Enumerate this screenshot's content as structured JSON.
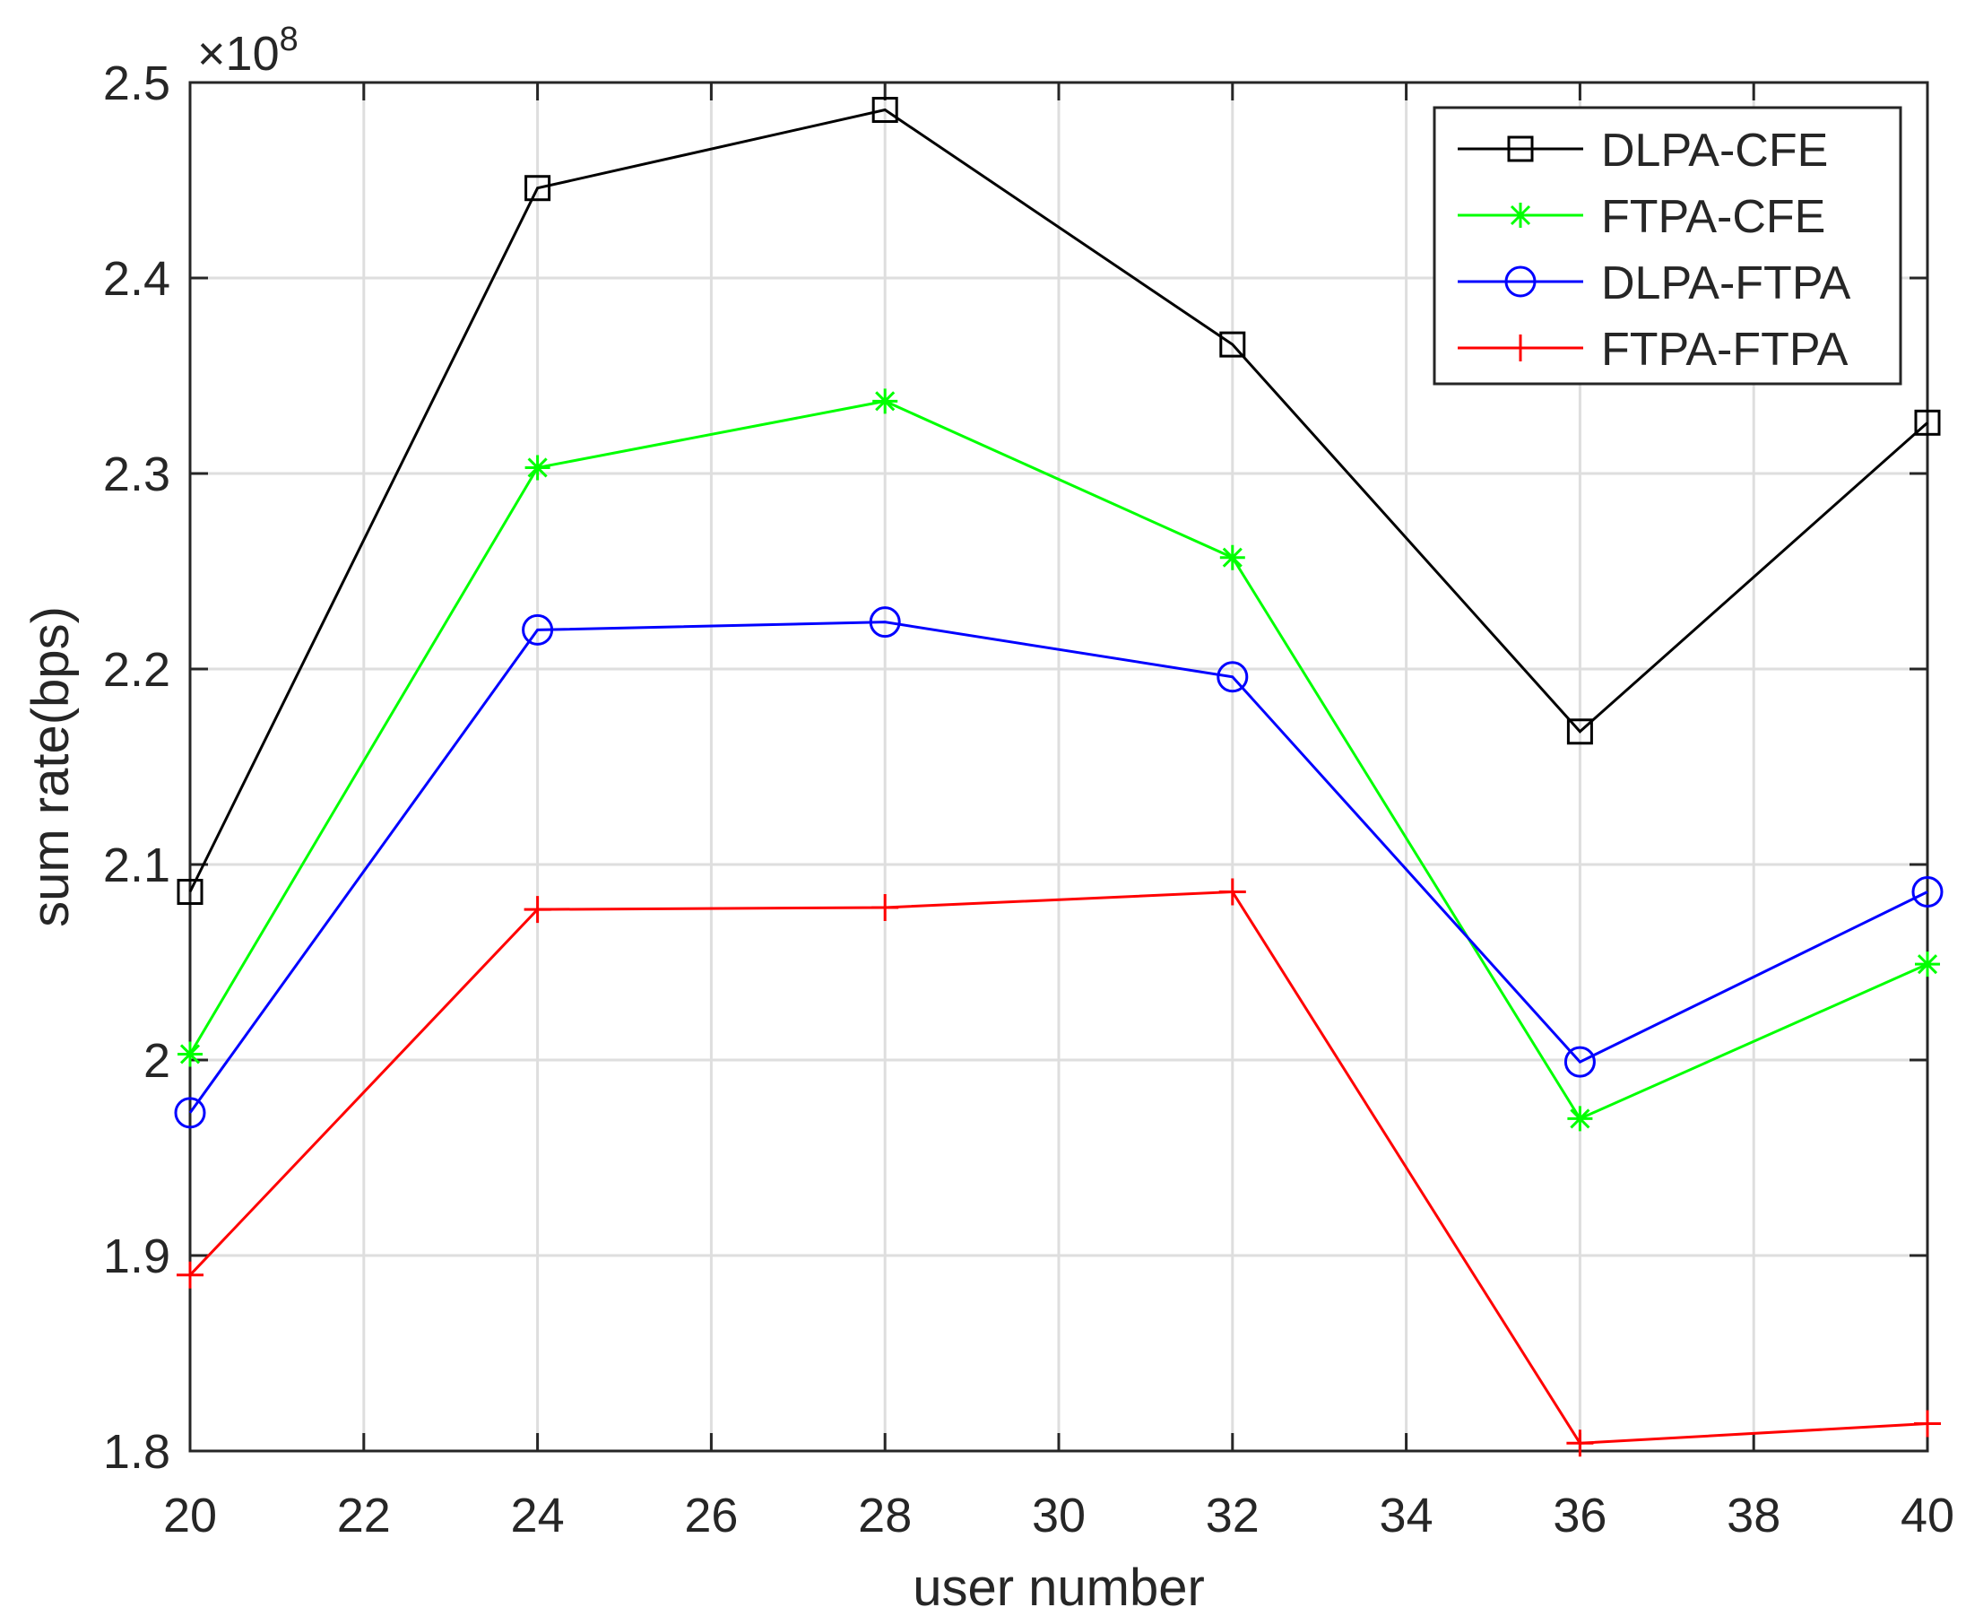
{
  "chart_data": {
    "type": "line",
    "xlabel": "user number",
    "ylabel": "sum rate(bps)",
    "exponent_label": "×10",
    "exponent_power": "8",
    "x": [
      20,
      24,
      28,
      32,
      36,
      40
    ],
    "xlim": [
      20,
      40
    ],
    "ylim": [
      1.8,
      2.5
    ],
    "xticks": [
      20,
      22,
      24,
      26,
      28,
      30,
      32,
      34,
      36,
      38,
      40
    ],
    "xtick_labels": [
      "20",
      "22",
      "24",
      "26",
      "28",
      "30",
      "32",
      "34",
      "36",
      "38",
      "40"
    ],
    "yticks": [
      1.8,
      1.9,
      2.0,
      2.1,
      2.2,
      2.3,
      2.4,
      2.5
    ],
    "ytick_labels": [
      "1.8",
      "1.9",
      "2",
      "2.1",
      "2.2",
      "2.3",
      "2.4",
      "2.5"
    ],
    "grid": true,
    "legend_position": "top-right",
    "series": [
      {
        "name": "DLPA-CFE",
        "color": "#000000",
        "marker": "square",
        "values": [
          2.086,
          2.446,
          2.486,
          2.366,
          2.168,
          2.326
        ]
      },
      {
        "name": "FTPA-CFE",
        "color": "#00ff00",
        "marker": "asterisk",
        "values": [
          2.003,
          2.303,
          2.337,
          2.257,
          1.97,
          2.049
        ]
      },
      {
        "name": "DLPA-FTPA",
        "color": "#0000ff",
        "marker": "circle",
        "values": [
          1.973,
          2.22,
          2.224,
          2.196,
          1.999,
          2.086
        ]
      },
      {
        "name": "FTPA-FTPA",
        "color": "#ff0000",
        "marker": "plus",
        "values": [
          1.89,
          2.077,
          2.078,
          2.086,
          1.804,
          1.814
        ]
      }
    ]
  }
}
